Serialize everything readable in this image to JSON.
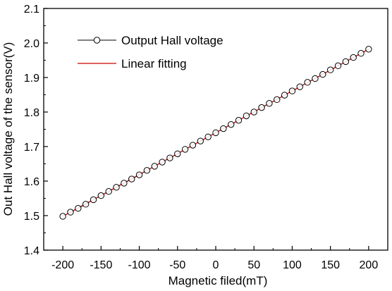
{
  "chart_data": {
    "type": "line",
    "xlabel": "Magnetic filed(mT)",
    "ylabel": "Out Hall voltage of the sensor(V)",
    "xlim": [
      -225,
      225
    ],
    "ylim": [
      1.4,
      2.1
    ],
    "xticks": [
      -200,
      -150,
      -100,
      -50,
      0,
      50,
      100,
      150,
      200
    ],
    "yticks": [
      1.4,
      1.5,
      1.6,
      1.7,
      1.8,
      1.9,
      2.0,
      2.1
    ],
    "xtick_labels": [
      "-200",
      "-150",
      "-100",
      "-50",
      "0",
      "50",
      "100",
      "150",
      "200"
    ],
    "ytick_labels": [
      "1.4",
      "1.5",
      "1.6",
      "1.7",
      "1.8",
      "1.9",
      "2.0",
      "2.1"
    ],
    "grid": false,
    "legend_position": "top-left",
    "series": [
      {
        "name": "Output Hall voltage",
        "style": "line-with-open-circles",
        "color": "#000000",
        "x": [
          -200,
          -190,
          -180,
          -170,
          -160,
          -150,
          -140,
          -130,
          -120,
          -110,
          -100,
          -90,
          -80,
          -70,
          -60,
          -50,
          -40,
          -30,
          -20,
          -10,
          0,
          10,
          20,
          30,
          40,
          50,
          60,
          70,
          80,
          90,
          100,
          110,
          120,
          130,
          140,
          150,
          160,
          170,
          180,
          190,
          200
        ],
        "y": [
          1.498,
          1.51,
          1.521,
          1.533,
          1.546,
          1.558,
          1.57,
          1.582,
          1.594,
          1.606,
          1.618,
          1.631,
          1.643,
          1.655,
          1.667,
          1.679,
          1.692,
          1.704,
          1.716,
          1.728,
          1.74,
          1.752,
          1.764,
          1.776,
          1.789,
          1.8,
          1.813,
          1.825,
          1.836,
          1.849,
          1.861,
          1.873,
          1.886,
          1.897,
          1.909,
          1.922,
          1.934,
          1.946,
          1.958,
          1.97,
          1.982
        ]
      },
      {
        "name": "Linear fitting",
        "style": "line",
        "color": "#cc0000",
        "x": [
          -200,
          200
        ],
        "y": [
          1.498,
          1.982
        ]
      }
    ]
  }
}
